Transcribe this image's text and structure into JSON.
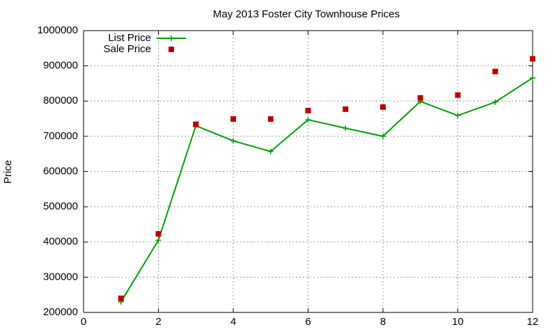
{
  "chart_data": {
    "type": "line",
    "title": "May 2013 Foster City Townhouse Prices",
    "y_label": "Price",
    "x": [
      1,
      2,
      3,
      4,
      5,
      6,
      7,
      8,
      9,
      10,
      11,
      12
    ],
    "series": [
      {
        "name": "List Price",
        "color": "#00a000",
        "style": "linespoints",
        "values": [
          230000,
          405000,
          730000,
          687000,
          657000,
          747000,
          723000,
          700000,
          799000,
          759000,
          797000,
          866000
        ]
      },
      {
        "name": "Sale Price",
        "color": "#c00000",
        "style": "points",
        "values": [
          240000,
          423000,
          734000,
          749000,
          749000,
          773000,
          777000,
          783000,
          809000,
          817000,
          884000,
          920000
        ]
      }
    ],
    "xlim": [
      0,
      12
    ],
    "xticks": [
      0,
      2,
      4,
      6,
      8,
      10,
      12
    ],
    "ylim": [
      200000,
      1000000
    ],
    "yticks": [
      200000,
      300000,
      400000,
      500000,
      600000,
      700000,
      800000,
      900000,
      1000000
    ],
    "grid": true,
    "legend": "top-left"
  }
}
